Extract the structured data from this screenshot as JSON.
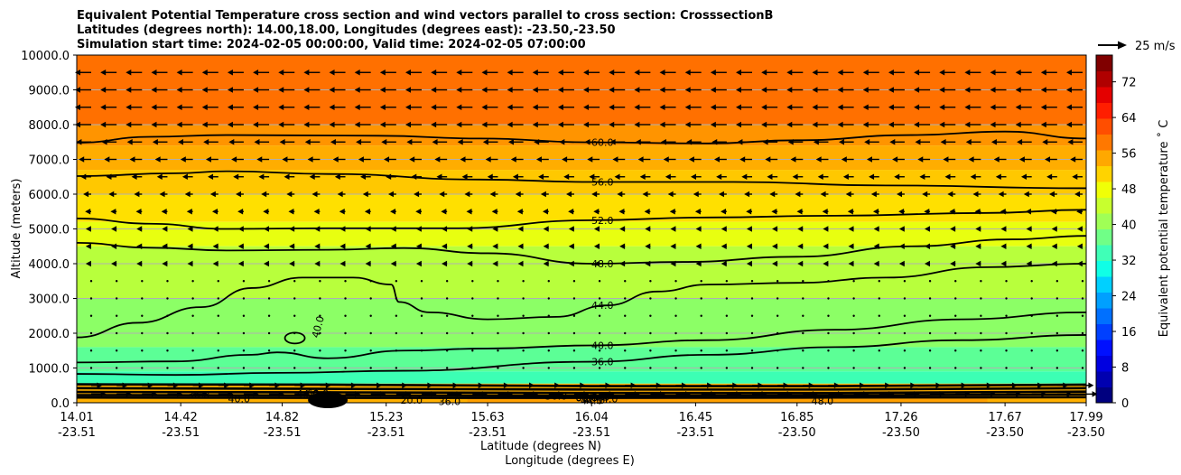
{
  "chart_data": {
    "type": "contour",
    "title_lines": [
      "Equivalent Potential Temperature cross section and wind vectors parallel to cross section: CrosssectionB",
      "Latitudes (degrees north): 14.00,18.00, Longitudes (degrees east): -23.50,-23.50",
      "Simulation start time: 2024-02-05 00:00:00, Valid time: 2024-02-05 07:00:00"
    ],
    "ylabel": "Altitude (meters)",
    "xlabel_lat": "Latitude (degrees N)",
    "xlabel_lon": "Longitude (degrees E)",
    "ylim": [
      0,
      10000
    ],
    "y_ticks": [
      {
        "v": 0,
        "l": "0.0"
      },
      {
        "v": 1000,
        "l": "1000.0"
      },
      {
        "v": 2000,
        "l": "2000.0"
      },
      {
        "v": 3000,
        "l": "3000.0"
      },
      {
        "v": 4000,
        "l": "4000.0"
      },
      {
        "v": 5000,
        "l": "5000.0"
      },
      {
        "v": 6000,
        "l": "6000.0"
      },
      {
        "v": 7000,
        "l": "7000.0"
      },
      {
        "v": 8000,
        "l": "8000.0"
      },
      {
        "v": 9000,
        "l": "9000.0"
      },
      {
        "v": 10000,
        "l": "10000.0"
      }
    ],
    "xlim": [
      14.01,
      17.99
    ],
    "x_ticks": [
      {
        "v": 14.01,
        "lat": "14.01",
        "lon": "-23.51"
      },
      {
        "v": 14.42,
        "lat": "14.42",
        "lon": "-23.51"
      },
      {
        "v": 14.82,
        "lat": "14.82",
        "lon": "-23.51"
      },
      {
        "v": 15.23,
        "lat": "15.23",
        "lon": "-23.51"
      },
      {
        "v": 15.63,
        "lat": "15.63",
        "lon": "-23.51"
      },
      {
        "v": 16.04,
        "lat": "16.04",
        "lon": "-23.51"
      },
      {
        "v": 16.45,
        "lat": "16.45",
        "lon": "-23.51"
      },
      {
        "v": 16.85,
        "lat": "16.85",
        "lon": "-23.50"
      },
      {
        "v": 17.26,
        "lat": "17.26",
        "lon": "-23.50"
      },
      {
        "v": 17.67,
        "lat": "17.67",
        "lon": "-23.50"
      },
      {
        "v": 17.99,
        "lat": "17.99",
        "lon": "-23.50"
      }
    ],
    "colorbar": {
      "label": "Equivalent potential temperature $^\\circ$C",
      "label_display": "Equivalent potential temperature ˚ C",
      "range": [
        0,
        78
      ],
      "ticks": [
        "0",
        "8",
        "16",
        "24",
        "32",
        "40",
        "48",
        "56",
        "64",
        "72"
      ],
      "colors": [
        "#00007f",
        "#0000b0",
        "#0000e0",
        "#0010ff",
        "#0040ff",
        "#0070ff",
        "#00a0ff",
        "#00d0ff",
        "#10ffe6",
        "#40ffb7",
        "#70ff87",
        "#a0ff56",
        "#c8ff2e",
        "#f0ff07",
        "#ffd300",
        "#ffa800",
        "#ff7800",
        "#ff4e00",
        "#ff1e00",
        "#e40000",
        "#b00000",
        "#800000"
      ]
    },
    "wind_key": {
      "label": "25 m/s"
    },
    "grid": "horizontal",
    "contours": [
      {
        "label": "60.0",
        "pts": [
          [
            14.01,
            7480
          ],
          [
            14.3,
            7650
          ],
          [
            14.6,
            7700
          ],
          [
            15.2,
            7680
          ],
          [
            15.6,
            7600
          ],
          [
            16.04,
            7490
          ],
          [
            16.5,
            7460
          ],
          [
            16.85,
            7550
          ],
          [
            17.3,
            7700
          ],
          [
            17.67,
            7800
          ],
          [
            17.99,
            7600
          ]
        ]
      },
      {
        "label": "56.0",
        "pts": [
          [
            14.01,
            6520
          ],
          [
            14.4,
            6600
          ],
          [
            14.6,
            6660
          ],
          [
            15.0,
            6580
          ],
          [
            15.6,
            6420
          ],
          [
            16.04,
            6350
          ],
          [
            16.6,
            6350
          ],
          [
            17.2,
            6250
          ],
          [
            17.99,
            6170
          ]
        ]
      },
      {
        "label": "52.0",
        "pts": [
          [
            14.01,
            5300
          ],
          [
            14.3,
            5150
          ],
          [
            14.6,
            5000
          ],
          [
            15.0,
            5020
          ],
          [
            15.5,
            5020
          ],
          [
            16.04,
            5250
          ],
          [
            16.5,
            5330
          ],
          [
            17.0,
            5380
          ],
          [
            17.6,
            5460
          ],
          [
            17.99,
            5550
          ]
        ]
      },
      {
        "label": "48.0",
        "pts": [
          [
            14.01,
            4600
          ],
          [
            14.3,
            4460
          ],
          [
            14.6,
            4380
          ],
          [
            15.0,
            4400
          ],
          [
            15.3,
            4450
          ],
          [
            15.63,
            4300
          ],
          [
            16.04,
            4000
          ],
          [
            16.4,
            4050
          ],
          [
            16.85,
            4200
          ],
          [
            17.3,
            4500
          ],
          [
            17.7,
            4700
          ],
          [
            17.99,
            4800
          ]
        ]
      },
      {
        "label": "44.0",
        "pts": [
          [
            14.01,
            1880
          ],
          [
            14.25,
            2300
          ],
          [
            14.5,
            2750
          ],
          [
            14.7,
            3300
          ],
          [
            14.9,
            3600
          ],
          [
            15.1,
            3600
          ],
          [
            15.25,
            3400
          ],
          [
            15.28,
            2900
          ],
          [
            15.4,
            2600
          ],
          [
            15.63,
            2400
          ],
          [
            15.9,
            2470
          ],
          [
            16.1,
            2800
          ],
          [
            16.3,
            3200
          ],
          [
            16.5,
            3400
          ],
          [
            16.85,
            3450
          ],
          [
            17.2,
            3600
          ],
          [
            17.6,
            3900
          ],
          [
            17.99,
            4000
          ]
        ]
      },
      {
        "label": "40.0",
        "pts": [
          [
            14.01,
            1160
          ],
          [
            14.4,
            1190
          ],
          [
            14.7,
            1380
          ],
          [
            14.8,
            1450
          ],
          [
            15.0,
            1280
          ],
          [
            15.3,
            1500
          ],
          [
            15.63,
            1560
          ],
          [
            16.04,
            1650
          ],
          [
            16.5,
            1800
          ],
          [
            17.0,
            2100
          ],
          [
            17.5,
            2400
          ],
          [
            17.99,
            2600
          ]
        ]
      },
      {
        "label": "36.0",
        "pts": [
          [
            14.01,
            830
          ],
          [
            14.4,
            800
          ],
          [
            14.8,
            860
          ],
          [
            15.3,
            920
          ],
          [
            16.04,
            1180
          ],
          [
            16.5,
            1380
          ],
          [
            17.0,
            1600
          ],
          [
            17.5,
            1800
          ],
          [
            17.99,
            1950
          ]
        ]
      },
      {
        "label": "",
        "pts": [
          [
            14.01,
            530
          ],
          [
            15.0,
            520
          ],
          [
            16.04,
            480
          ],
          [
            17.0,
            480
          ],
          [
            17.99,
            520
          ]
        ]
      },
      {
        "label": "",
        "pts": [
          [
            14.01,
            420
          ],
          [
            15.0,
            400
          ],
          [
            16.04,
            380
          ],
          [
            17.0,
            380
          ],
          [
            17.99,
            420
          ]
        ]
      },
      {
        "label": "",
        "pts": [
          [
            14.01,
            310
          ],
          [
            15.0,
            300
          ],
          [
            16.04,
            280
          ],
          [
            17.0,
            280
          ],
          [
            17.99,
            320
          ]
        ]
      },
      {
        "label": "",
        "pts": [
          [
            14.01,
            220
          ],
          [
            15.0,
            210
          ],
          [
            16.04,
            200
          ],
          [
            17.0,
            210
          ],
          [
            17.99,
            240
          ]
        ]
      },
      {
        "label": "",
        "pts": [
          [
            14.01,
            150
          ],
          [
            15.0,
            140
          ],
          [
            16.04,
            140
          ],
          [
            17.0,
            150
          ],
          [
            17.99,
            160
          ]
        ]
      }
    ],
    "inline_labels": [
      "36.0",
      "40.0",
      "44.0",
      "60.0",
      "20.0",
      "36.0",
      "60.0",
      "40.0",
      "44.0",
      "40.0",
      "60.0",
      "44.0",
      "48.0",
      "36.0"
    ],
    "color_bands": [
      {
        "v": 60,
        "top": 10000,
        "bot": 8000,
        "color": "#ff7000"
      },
      {
        "v": 58,
        "top": 8000,
        "bot": 7400,
        "color": "#ff9400"
      },
      {
        "v": 56,
        "top": 7400,
        "bot": 6700,
        "color": "#ffad00"
      },
      {
        "v": 54,
        "top": 6700,
        "bot": 6000,
        "color": "#ffc800"
      },
      {
        "v": 52,
        "top": 6000,
        "bot": 5200,
        "color": "#ffe000"
      },
      {
        "v": 49,
        "top": 5200,
        "bot": 4500,
        "color": "#e8ff10"
      },
      {
        "v": 46,
        "top": 4500,
        "bot": 3000,
        "color": "#b8ff3c"
      },
      {
        "v": 43,
        "top": 3000,
        "bot": 1600,
        "color": "#8cff66"
      },
      {
        "v": 40,
        "top": 1600,
        "bot": 900,
        "color": "#5cff96"
      },
      {
        "v": 37,
        "top": 900,
        "bot": 550,
        "color": "#3cffb4"
      },
      {
        "v": 50,
        "top": 550,
        "bot": 0,
        "color": "#ffb000"
      }
    ],
    "wind_levels": [
      {
        "alt": 9500,
        "u": -1.0
      },
      {
        "alt": 9000,
        "u": -1.0
      },
      {
        "alt": 8500,
        "u": -1.0
      },
      {
        "alt": 8000,
        "u": -1.0
      },
      {
        "alt": 7500,
        "u": -0.9
      },
      {
        "alt": 7000,
        "u": -0.7
      },
      {
        "alt": 6500,
        "u": -0.55
      },
      {
        "alt": 6000,
        "u": -0.35
      },
      {
        "alt": 5500,
        "u": -0.2
      },
      {
        "alt": 5000,
        "u": -0.15
      },
      {
        "alt": 4500,
        "u": -0.15
      },
      {
        "alt": 4000,
        "u": -0.15
      },
      {
        "alt": 3500,
        "u": -0.12
      },
      {
        "alt": 3000,
        "u": -0.1
      },
      {
        "alt": 2500,
        "u": -0.1
      },
      {
        "alt": 2000,
        "u": -0.08
      },
      {
        "alt": 1500,
        "u": 0.1
      },
      {
        "alt": 1000,
        "u": 0.1
      },
      {
        "alt": 500,
        "u": 0.6
      },
      {
        "alt": 250,
        "u": 0.9
      }
    ]
  }
}
